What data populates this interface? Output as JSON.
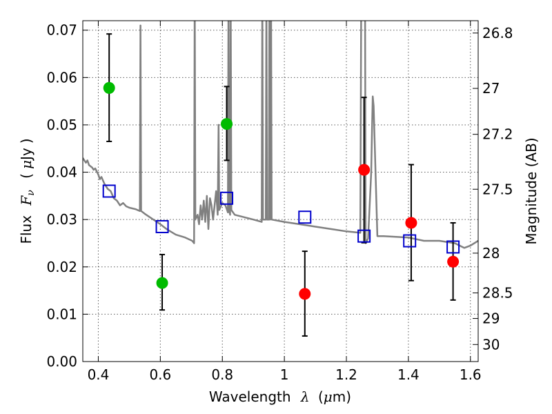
{
  "chart_data": {
    "type": "scatter",
    "xlabel": "Wavelength",
    "xlabel_symbol": "λ",
    "xlabel_unit_open": "(",
    "xlabel_unit_mu": "μ",
    "xlabel_unit_rest": "m)",
    "ylabel": "Flux",
    "ylabel_symbol_F": "F",
    "ylabel_symbol_sub": "ν",
    "ylabel_unit_open": "(",
    "ylabel_unit_mu": "μ",
    "ylabel_unit_rest": "Jy",
    "ylabel_unit_close": ")",
    "ylabel_right": "Magnitude (AB)",
    "xlim": [
      0.35,
      1.625
    ],
    "ylim": [
      0.0,
      0.072
    ],
    "grid": true,
    "xticks": [
      0.4,
      0.6,
      0.8,
      1.0,
      1.2,
      1.4,
      1.6
    ],
    "xtick_labels": [
      "0.4",
      "0.6",
      "0.8",
      "1",
      "1.2",
      "1.4",
      "1.6"
    ],
    "yticks": [
      0.0,
      0.01,
      0.02,
      0.03,
      0.04,
      0.05,
      0.06,
      0.07
    ],
    "ytick_labels": [
      "0.00",
      "0.01",
      "0.02",
      "0.03",
      "0.04",
      "0.05",
      "0.06",
      "0.07"
    ],
    "right_ticks": [
      {
        "label": "26.8",
        "flux": 0.0694
      },
      {
        "label": "27",
        "flux": 0.0577
      },
      {
        "label": "27.2",
        "flux": 0.048
      },
      {
        "label": "27.5",
        "flux": 0.0364
      },
      {
        "label": "28",
        "flux": 0.0229
      },
      {
        "label": "28.5",
        "flux": 0.0145
      },
      {
        "label": "29",
        "flux": 0.0091
      },
      {
        "label": "30",
        "flux": 0.0036
      }
    ],
    "colors": {
      "model": "#808080",
      "green": "#00bb00",
      "red": "#ff0000",
      "square": "#0000cc",
      "errorbar": "#000000"
    },
    "series": [
      {
        "marker": "green-circle",
        "points": [
          {
            "x": 0.435,
            "y": 0.0578,
            "ylo": 0.0465,
            "yhi": 0.0692
          },
          {
            "x": 0.606,
            "y": 0.0166,
            "ylo": 0.0109,
            "yhi": 0.0226
          },
          {
            "x": 0.814,
            "y": 0.0502,
            "ylo": 0.0425,
            "yhi": 0.0581
          }
        ]
      },
      {
        "marker": "red-circle",
        "points": [
          {
            "x": 1.066,
            "y": 0.0143,
            "ylo": 0.0054,
            "yhi": 0.0233
          },
          {
            "x": 1.257,
            "y": 0.0405,
            "ylo": 0.0251,
            "yhi": 0.0558
          },
          {
            "x": 1.409,
            "y": 0.0293,
            "ylo": 0.0171,
            "yhi": 0.0416
          },
          {
            "x": 1.544,
            "y": 0.0211,
            "ylo": 0.013,
            "yhi": 0.0293
          }
        ]
      },
      {
        "marker": "blue-square",
        "points": [
          {
            "x": 0.435,
            "y": 0.036
          },
          {
            "x": 0.606,
            "y": 0.0285
          },
          {
            "x": 0.814,
            "y": 0.0345
          },
          {
            "x": 1.066,
            "y": 0.0305
          },
          {
            "x": 1.257,
            "y": 0.0265
          },
          {
            "x": 1.404,
            "y": 0.0255
          },
          {
            "x": 1.544,
            "y": 0.0242
          }
        ]
      }
    ],
    "model_spectrum": [
      [
        0.35,
        0.043
      ],
      [
        0.36,
        0.042
      ],
      [
        0.365,
        0.0425
      ],
      [
        0.37,
        0.0415
      ],
      [
        0.38,
        0.041
      ],
      [
        0.385,
        0.0405
      ],
      [
        0.39,
        0.0408
      ],
      [
        0.4,
        0.0395
      ],
      [
        0.405,
        0.0385
      ],
      [
        0.41,
        0.039
      ],
      [
        0.42,
        0.0375
      ],
      [
        0.43,
        0.0365
      ],
      [
        0.44,
        0.036
      ],
      [
        0.45,
        0.0345
      ],
      [
        0.46,
        0.034
      ],
      [
        0.47,
        0.033
      ],
      [
        0.48,
        0.0335
      ],
      [
        0.49,
        0.0328
      ],
      [
        0.5,
        0.0325
      ],
      [
        0.52,
        0.0322
      ],
      [
        0.534,
        0.0318
      ],
      [
        0.536,
        0.071
      ],
      [
        0.538,
        0.0318
      ],
      [
        0.55,
        0.0312
      ],
      [
        0.6,
        0.029
      ],
      [
        0.62,
        0.028
      ],
      [
        0.65,
        0.0268
      ],
      [
        0.68,
        0.0262
      ],
      [
        0.703,
        0.0255
      ],
      [
        0.709,
        0.025
      ],
      [
        0.711,
        0.08
      ],
      [
        0.713,
        0.03
      ],
      [
        0.72,
        0.031
      ],
      [
        0.725,
        0.029
      ],
      [
        0.73,
        0.033
      ],
      [
        0.735,
        0.03
      ],
      [
        0.74,
        0.034
      ],
      [
        0.745,
        0.0295
      ],
      [
        0.75,
        0.035
      ],
      [
        0.755,
        0.028
      ],
      [
        0.76,
        0.0345
      ],
      [
        0.765,
        0.033
      ],
      [
        0.77,
        0.03
      ],
      [
        0.78,
        0.036
      ],
      [
        0.785,
        0.031
      ],
      [
        0.788,
        0.05
      ],
      [
        0.79,
        0.032
      ],
      [
        0.8,
        0.0335
      ],
      [
        0.81,
        0.033
      ],
      [
        0.818,
        0.0315
      ],
      [
        0.82,
        0.08
      ],
      [
        0.822,
        0.032
      ],
      [
        0.825,
        0.031
      ],
      [
        0.827,
        0.074
      ],
      [
        0.829,
        0.032
      ],
      [
        0.84,
        0.031
      ],
      [
        0.9,
        0.03
      ],
      [
        0.927,
        0.0295
      ],
      [
        0.929,
        0.08
      ],
      [
        0.931,
        0.03
      ],
      [
        0.94,
        0.03
      ],
      [
        0.942,
        0.08
      ],
      [
        0.944,
        0.03
      ],
      [
        0.95,
        0.03
      ],
      [
        0.952,
        0.08
      ],
      [
        0.954,
        0.03
      ],
      [
        0.957,
        0.08
      ],
      [
        0.959,
        0.03
      ],
      [
        1.0,
        0.0295
      ],
      [
        1.05,
        0.029
      ],
      [
        1.1,
        0.0285
      ],
      [
        1.15,
        0.028
      ],
      [
        1.2,
        0.0275
      ],
      [
        1.245,
        0.0272
      ],
      [
        1.248,
        0.08
      ],
      [
        1.26,
        0.08
      ],
      [
        1.262,
        0.025
      ],
      [
        1.27,
        0.026
      ],
      [
        1.28,
        0.04
      ],
      [
        1.283,
        0.05
      ],
      [
        1.285,
        0.056
      ],
      [
        1.288,
        0.054
      ],
      [
        1.3,
        0.0265
      ],
      [
        1.32,
        0.0265
      ],
      [
        1.4,
        0.0262
      ],
      [
        1.45,
        0.0255
      ],
      [
        1.5,
        0.0255
      ],
      [
        1.55,
        0.025
      ],
      [
        1.58,
        0.024
      ],
      [
        1.6,
        0.0245
      ],
      [
        1.625,
        0.0255
      ]
    ]
  }
}
